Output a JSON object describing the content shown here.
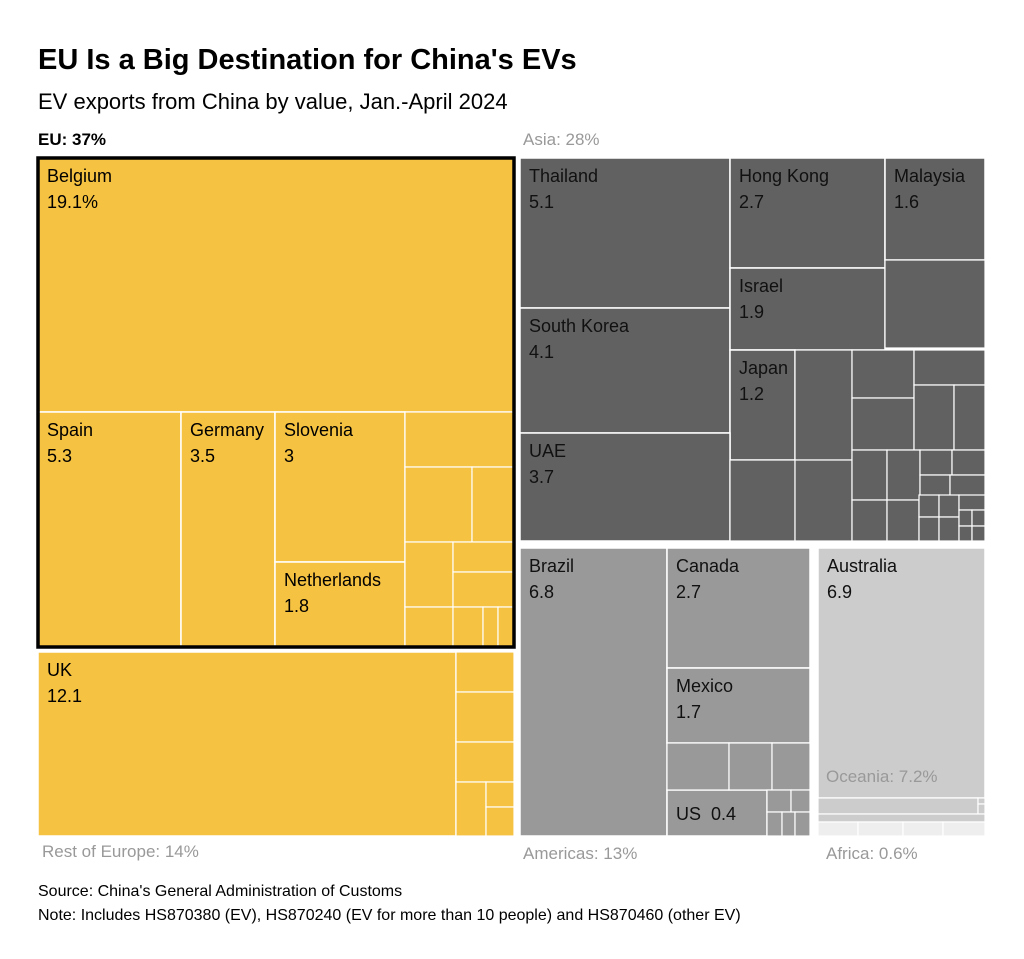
{
  "chart_data": {
    "type": "treemap",
    "title": "EU Is a Big Destination for China's EVs",
    "subtitle": "EV exports from China by value, Jan.-April 2024",
    "groups": [
      {
        "label": "EU: 37%",
        "color": "#f5c242",
        "items": [
          {
            "name": "Belgium",
            "value": "19.1%"
          },
          {
            "name": "Spain",
            "value": "5.3"
          },
          {
            "name": "Germany",
            "value": "3.5"
          },
          {
            "name": "Slovenia",
            "value": "3"
          },
          {
            "name": "Netherlands",
            "value": "1.8"
          }
        ]
      },
      {
        "label": "Rest of Europe: 14%",
        "color": "#f5c242",
        "items": [
          {
            "name": "UK",
            "value": "12.1"
          }
        ]
      },
      {
        "label": "Asia: 28%",
        "color": "#616161",
        "items": [
          {
            "name": "Thailand",
            "value": "5.1"
          },
          {
            "name": "Hong Kong",
            "value": "2.7"
          },
          {
            "name": "Malaysia",
            "value": "1.6"
          },
          {
            "name": "South Korea",
            "value": "4.1"
          },
          {
            "name": "Israel",
            "value": "1.9"
          },
          {
            "name": "Japan",
            "value": "1.2"
          },
          {
            "name": "UAE",
            "value": "3.7"
          }
        ]
      },
      {
        "label": "Americas: 13%",
        "color": "#999999",
        "items": [
          {
            "name": "Brazil",
            "value": "6.8"
          },
          {
            "name": "Canada",
            "value": "2.7"
          },
          {
            "name": "Mexico",
            "value": "1.7"
          },
          {
            "name": "US",
            "value": "0.4"
          }
        ]
      },
      {
        "label": "Oceania: 7.2%",
        "color": "#cccccc",
        "items": [
          {
            "name": "Australia",
            "value": "6.9"
          }
        ]
      },
      {
        "label": "Africa: 0.6%",
        "color": "#eeeeee",
        "items": []
      }
    ]
  },
  "footer": {
    "source": "Source: China's General Administration of Customs",
    "note": "Note: Includes HS870380 (EV), HS870240 (EV for more than 10 people) and HS870460 (other EV)"
  }
}
